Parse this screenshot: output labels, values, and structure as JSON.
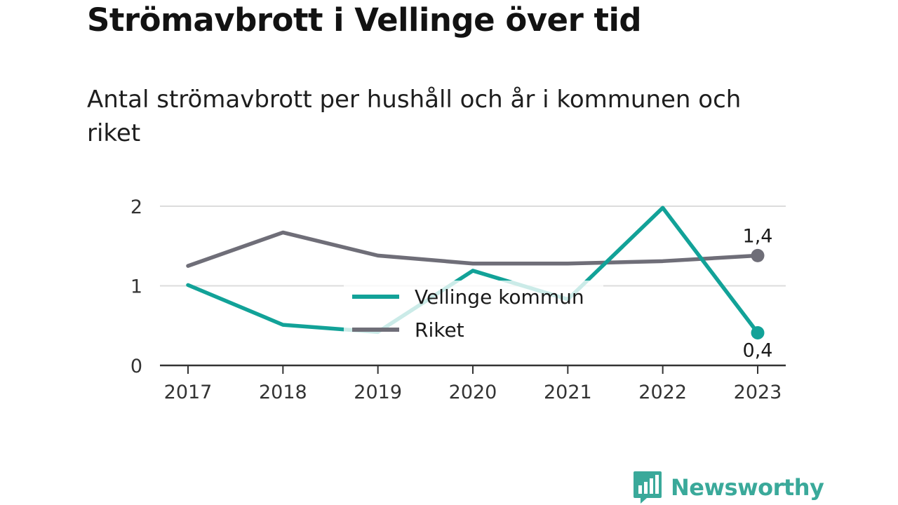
{
  "header": {
    "title": "Strömavbrott i Vellinge över tid",
    "subtitle": "Antal strömavbrott per hushåll och år i kommunen och riket"
  },
  "brand": {
    "name": "Newsworthy",
    "logo_icon": "bar-chart-speech-bubble-icon",
    "color": "#3aa99a"
  },
  "chart_data": {
    "type": "line",
    "categories": [
      "2017",
      "2018",
      "2019",
      "2020",
      "2021",
      "2022",
      "2023"
    ],
    "ylim": [
      0,
      2
    ],
    "yticks": [
      "0",
      "1",
      "2"
    ],
    "grid": true,
    "legend_position": "center",
    "series": [
      {
        "name": "Vellinge kommun",
        "color": "#12a298",
        "values": [
          1.01,
          0.51,
          0.42,
          1.19,
          0.83,
          1.98,
          0.41
        ],
        "end_label": "0,4"
      },
      {
        "name": "Riket",
        "color": "#6f6e78",
        "values": [
          1.25,
          1.67,
          1.38,
          1.28,
          1.28,
          1.31,
          1.38
        ],
        "end_label": "1,4"
      }
    ]
  }
}
